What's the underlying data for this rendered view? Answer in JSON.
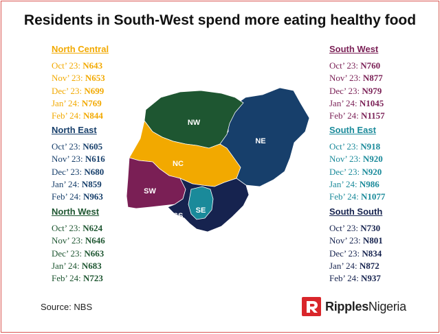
{
  "title": "Residents in South-West spend more eating healthy food",
  "source": "Source: NBS",
  "brand": {
    "part1": "Ripples",
    "part2": "Nigeria",
    "color": "#d9262b"
  },
  "regions": [
    {
      "name": "North Central",
      "color": "#f2a900",
      "rows": [
        {
          "label": "Oct’ 23: ",
          "value": "N643"
        },
        {
          "label": "Nov’ 23: ",
          "value": "N653"
        },
        {
          "label": "Dec’ 23: ",
          "value": "N699"
        },
        {
          "label": "Jan’ 24: ",
          "value": "N769"
        },
        {
          "label": "Feb’ 24: ",
          "value": "N844"
        }
      ]
    },
    {
      "name": "North East",
      "color": "#173f6b",
      "rows": [
        {
          "label": "Oct’ 23: ",
          "value": "N605"
        },
        {
          "label": "Nov’ 23: ",
          "value": "N616"
        },
        {
          "label": "Dec’ 23: ",
          "value": "N680"
        },
        {
          "label": "Jan’ 24: ",
          "value": "N859"
        },
        {
          "label": "Feb’ 24: ",
          "value": "N963"
        }
      ]
    },
    {
      "name": "North West",
      "color": "#1e5631",
      "rows": [
        {
          "label": "Oct’ 23: ",
          "value": "N624"
        },
        {
          "label": "Nov’ 23: ",
          "value": "N646"
        },
        {
          "label": "Dec’ 23: ",
          "value": "N663"
        },
        {
          "label": "Jan’ 24: ",
          "value": "N683"
        },
        {
          "label": "Feb’ 24: ",
          "value": "N723"
        }
      ]
    },
    {
      "name": "South West",
      "color": "#7a1f55",
      "rows": [
        {
          "label": "Oct’ 23: ",
          "value": "N760"
        },
        {
          "label": "Nov’ 23: ",
          "value": "N877"
        },
        {
          "label": "Dec’ 23: ",
          "value": "N979"
        },
        {
          "label": "Jan’ 24: ",
          "value": "N1045"
        },
        {
          "label": "Feb’ 24: ",
          "value": "N1157"
        }
      ]
    },
    {
      "name": "South East",
      "color": "#1a8a9a",
      "rows": [
        {
          "label": "Oct’ 23: ",
          "value": "N918"
        },
        {
          "label": "Nov’ 23: ",
          "value": "N920"
        },
        {
          "label": "Dec’ 23: ",
          "value": "N920"
        },
        {
          "label": "Jan’ 24: ",
          "value": "N986"
        },
        {
          "label": "Feb’ 24: ",
          "value": "N1077"
        }
      ]
    },
    {
      "name": "South South",
      "color": "#16234f",
      "rows": [
        {
          "label": "Oct’ 23: ",
          "value": "N730"
        },
        {
          "label": "Nov’ 23: ",
          "value": "N801"
        },
        {
          "label": "Dec’ 23: ",
          "value": "N834"
        },
        {
          "label": "Jan’ 24: ",
          "value": "N872"
        },
        {
          "label": "Feb’ 24: ",
          "value": "N937"
        }
      ]
    }
  ],
  "map_labels": {
    "nw": "NW",
    "ne": "NE",
    "nc": "NC",
    "sw": "SW",
    "se": "SE",
    "ss": "SS"
  }
}
